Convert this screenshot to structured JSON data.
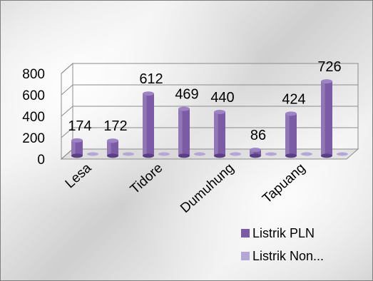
{
  "chart_data": {
    "type": "bar",
    "title": "",
    "xlabel": "",
    "ylabel": "",
    "ylim": [
      0,
      800
    ],
    "yticks": [
      0,
      200,
      400,
      600,
      800
    ],
    "grid": true,
    "legend_position": "bottom-right",
    "categories": [
      "Lesa",
      "",
      "Tidore",
      "",
      "Dumuhung",
      "",
      "Tapuang",
      ""
    ],
    "series": [
      {
        "name": "Listrik PLN",
        "values": [
          174,
          172,
          612,
          469,
          440,
          86,
          424,
          726
        ],
        "color": "#7b5aa6"
      },
      {
        "name": "Listrik Non...",
        "values": [
          0,
          0,
          0,
          0,
          0,
          0,
          0,
          0
        ],
        "color": "#b4a7d6"
      }
    ],
    "data_labels": [
      "174",
      "172",
      "612",
      "469",
      "440",
      "86",
      "424",
      "726"
    ]
  }
}
